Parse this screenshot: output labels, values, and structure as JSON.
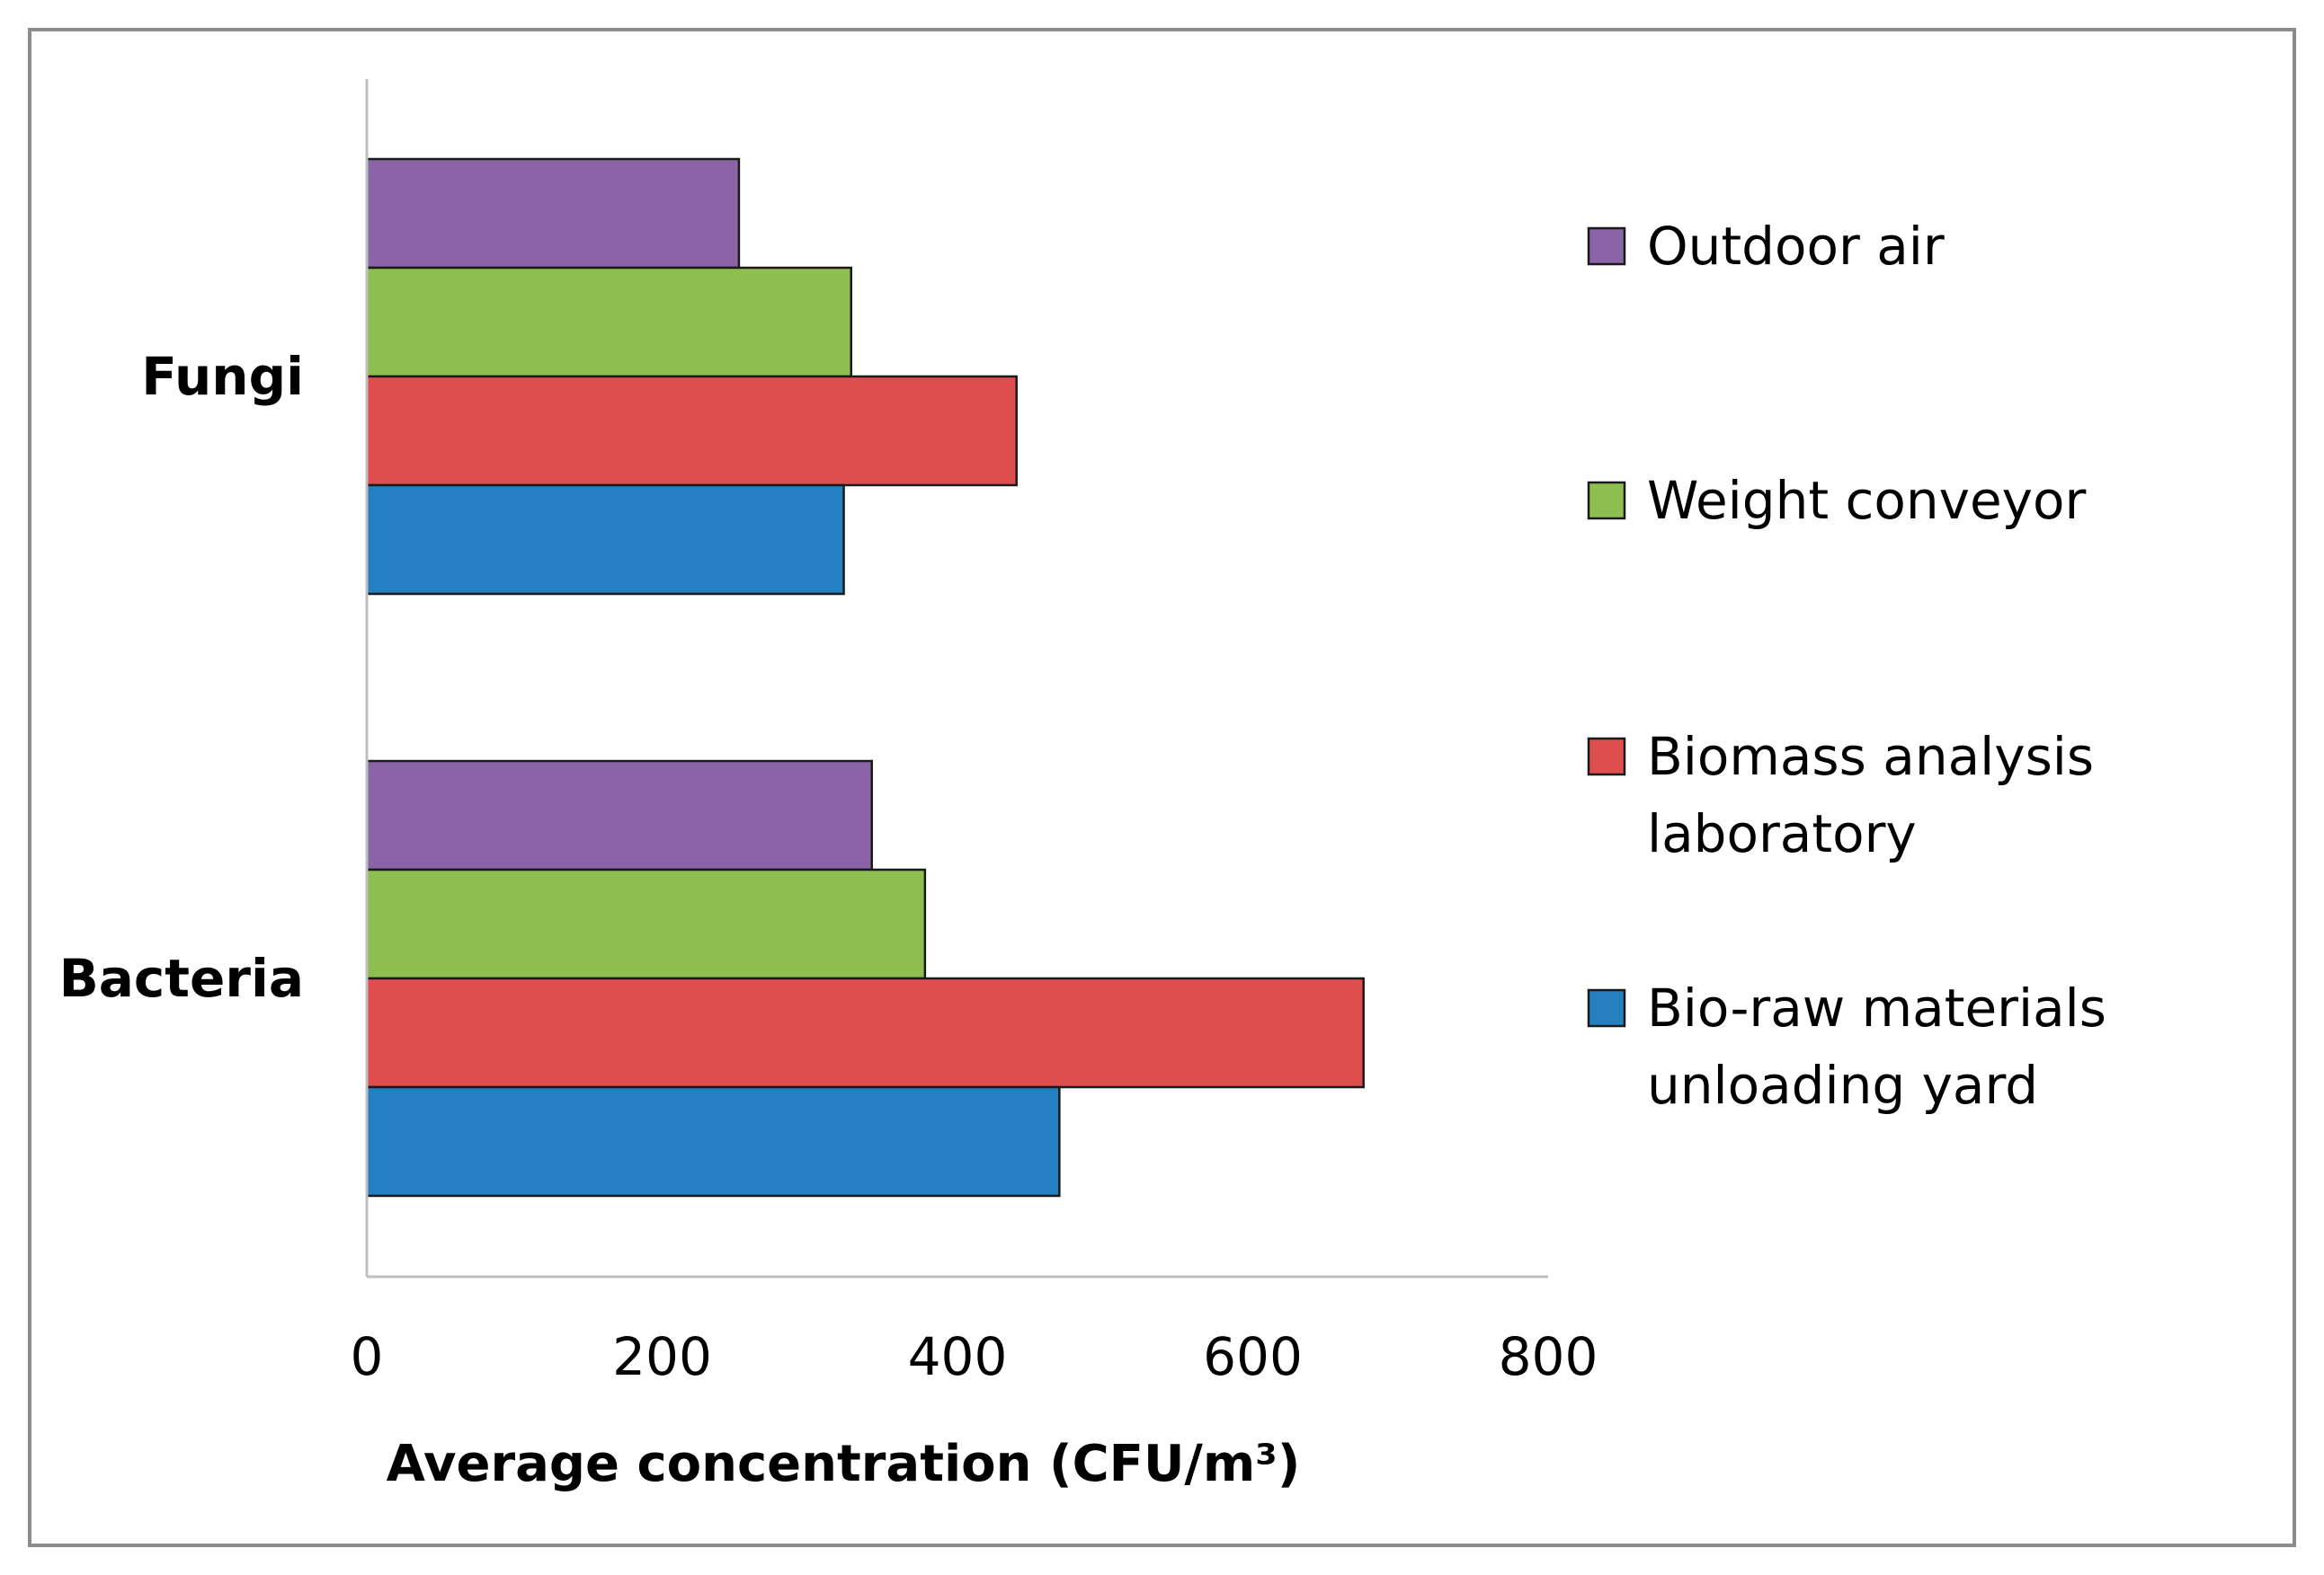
{
  "chart_data": {
    "type": "bar",
    "orientation": "horizontal",
    "categories": [
      "Fungi",
      "Bacteria"
    ],
    "series": [
      {
        "name": "Outdoor air",
        "legend_lines": [
          "Outdoor air"
        ],
        "color": "#8b64a7",
        "values": [
          252,
          342
        ]
      },
      {
        "name": "Weight conveyor",
        "legend_lines": [
          "Weight conveyor"
        ],
        "color": "#8fbe50",
        "values": [
          328,
          378
        ]
      },
      {
        "name": "Biomass analysis laboratory",
        "legend_lines": [
          "Biomass analysis",
          "laboratory"
        ],
        "color": "#de4e4e",
        "values": [
          440,
          675
        ]
      },
      {
        "name": "Bio-raw materials unloading yard",
        "legend_lines": [
          "Bio-raw materials",
          "unloading yard"
        ],
        "color": "#2580c2",
        "values": [
          323,
          469
        ]
      }
    ],
    "xlabel": "Average concentration (CFU/m³)",
    "ylabel": "",
    "xlim": [
      0,
      800
    ],
    "xticks": [
      "0",
      "200",
      "400",
      "600",
      "800"
    ],
    "grid": false,
    "legend_position": "right"
  }
}
